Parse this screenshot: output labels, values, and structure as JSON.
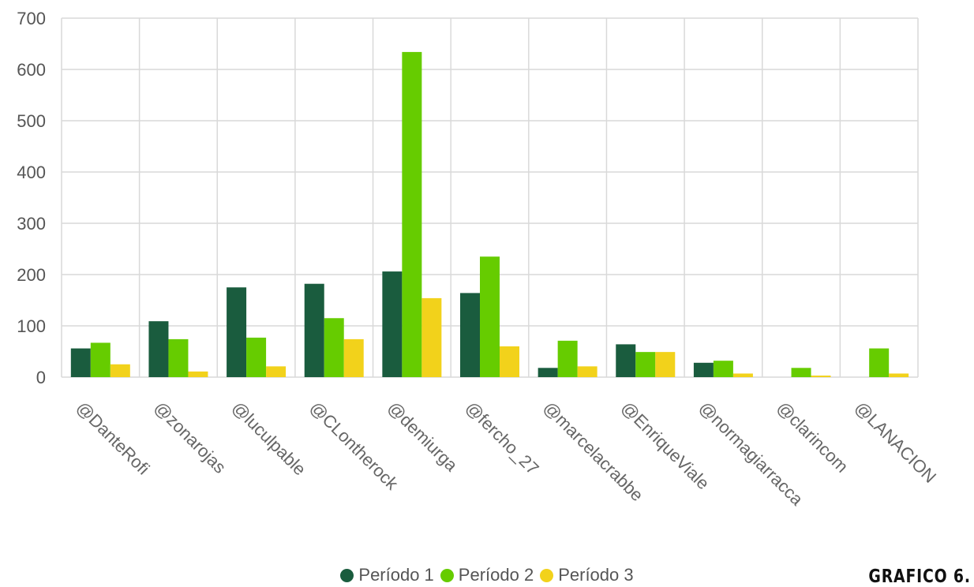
{
  "chart_data": {
    "type": "bar",
    "title": "",
    "xlabel": "",
    "ylabel": "",
    "ylim": [
      0,
      700
    ],
    "yticks": [
      0,
      100,
      200,
      300,
      400,
      500,
      600,
      700
    ],
    "grid": true,
    "legend_position": "bottom",
    "categories": [
      "@DanteRofi",
      "@zonarojas",
      "@luculpable",
      "@CLontherock",
      "@demiurga",
      "@fercho_27",
      "@marcelacrabbe",
      "@EnriqueViale",
      "@normagiarracca",
      "@clarincom",
      "@LANACION"
    ],
    "series": [
      {
        "name": "Período 1",
        "color": "#1a5c3e",
        "values": [
          56,
          109,
          175,
          182,
          206,
          164,
          18,
          64,
          28,
          0,
          0
        ]
      },
      {
        "name": "Período 2",
        "color": "#66cc00",
        "values": [
          67,
          74,
          77,
          115,
          634,
          235,
          71,
          49,
          32,
          18,
          56
        ]
      },
      {
        "name": "Período 3",
        "color": "#f2d21b",
        "values": [
          25,
          11,
          21,
          74,
          154,
          60,
          21,
          49,
          7,
          3,
          7
        ]
      }
    ]
  },
  "figure_tag": "GRAFICO 6."
}
